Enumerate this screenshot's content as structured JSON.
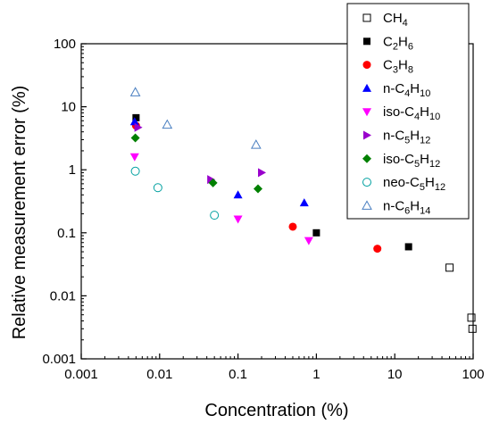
{
  "chart_data": {
    "type": "scatter",
    "xlabel": "Concentration (%)",
    "ylabel": "Relative measurement error (%)",
    "x_scale": "log",
    "y_scale": "log",
    "xlim": [
      0.001,
      100
    ],
    "ylim": [
      0.001,
      100
    ],
    "x_ticks": [
      "0.001",
      "0.01",
      "0.1",
      "1",
      "10",
      "100"
    ],
    "y_ticks": [
      "0.001",
      "0.01",
      "0.1",
      "1",
      "10",
      "100"
    ],
    "grid": false,
    "legend_position": "top-right",
    "series": [
      {
        "name": "CH",
        "sub": "4",
        "marker": "square-open",
        "color": "#000000",
        "points": [
          [
            50,
            0.028
          ],
          [
            95,
            0.0045
          ],
          [
            98,
            0.003
          ]
        ]
      },
      {
        "name": "C",
        "sub": "2",
        "name2": "H",
        "sub2": "6",
        "marker": "square",
        "color": "#000000",
        "points": [
          [
            0.005,
            6.7
          ],
          [
            1.0,
            0.1
          ],
          [
            15,
            0.06
          ]
        ]
      },
      {
        "name": "C",
        "sub": "3",
        "name2": "H",
        "sub2": "8",
        "marker": "circle",
        "color": "#ff0000",
        "points": [
          [
            0.005,
            5.0
          ],
          [
            0.5,
            0.125
          ],
          [
            6.0,
            0.056
          ]
        ]
      },
      {
        "name": "n-C",
        "sub": "4",
        "name2": "H",
        "sub2": "10",
        "marker": "triangle-up",
        "color": "#0000ff",
        "points": [
          [
            0.0048,
            5.8
          ],
          [
            0.1,
            0.4
          ],
          [
            0.7,
            0.3
          ]
        ]
      },
      {
        "name": "iso-C",
        "sub": "4",
        "name2": "H",
        "sub2": "10",
        "marker": "triangle-down",
        "color": "#ff00ff",
        "points": [
          [
            0.0048,
            1.6
          ],
          [
            0.1,
            0.165
          ],
          [
            0.8,
            0.075
          ]
        ]
      },
      {
        "name": "n-C",
        "sub": "5",
        "name2": "H",
        "sub2": "12",
        "marker": "triangle-right",
        "color": "#9900cc",
        "points": [
          [
            0.0053,
            4.7
          ],
          [
            0.045,
            0.7
          ],
          [
            0.2,
            0.9
          ]
        ]
      },
      {
        "name": "iso-C",
        "sub": "5",
        "name2": "H",
        "sub2": "12",
        "marker": "diamond",
        "color": "#008000",
        "points": [
          [
            0.0049,
            3.2
          ],
          [
            0.048,
            0.62
          ],
          [
            0.18,
            0.5
          ]
        ]
      },
      {
        "name": "neo-C",
        "sub": "5",
        "name2": "H",
        "sub2": "12",
        "marker": "circle-open",
        "color": "#00a0a0",
        "points": [
          [
            0.0049,
            0.95
          ],
          [
            0.0095,
            0.52
          ],
          [
            0.05,
            0.19
          ]
        ]
      },
      {
        "name": "n-C",
        "sub": "6",
        "name2": "H",
        "sub2": "14",
        "marker": "triangle-up-open",
        "color": "#4a7fc1",
        "points": [
          [
            0.0049,
            17
          ],
          [
            0.0125,
            5.2
          ],
          [
            0.17,
            2.5
          ]
        ]
      }
    ]
  }
}
